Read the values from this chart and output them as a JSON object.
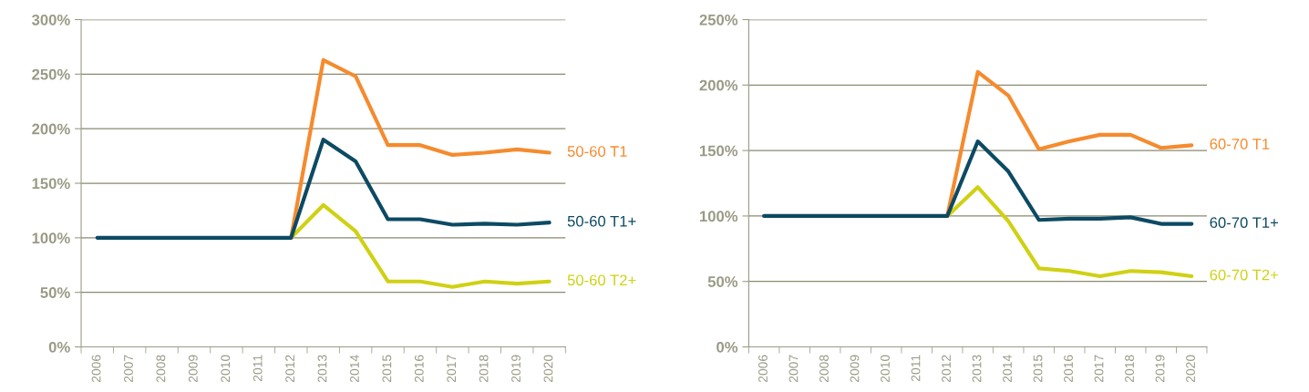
{
  "chart_data": [
    {
      "type": "line",
      "categories": [
        "2006",
        "2007",
        "2008",
        "2009",
        "2010",
        "2011",
        "2012",
        "2013",
        "2014",
        "2015",
        "2016",
        "2017",
        "2018",
        "2019",
        "2020"
      ],
      "ylim": [
        0,
        300
      ],
      "yticks": [
        {
          "value": 0,
          "label": "0%"
        },
        {
          "value": 50,
          "label": "50%"
        },
        {
          "value": 100,
          "label": "100%"
        },
        {
          "value": 150,
          "label": "150%"
        },
        {
          "value": 200,
          "label": "200%"
        },
        {
          "value": 250,
          "label": "250%"
        },
        {
          "value": 300,
          "label": "300%"
        }
      ],
      "grid": "y",
      "legend": false,
      "marker": "none",
      "line_style": "solid",
      "series": [
        {
          "name": "50-60 T2+",
          "color": "#cfd114",
          "values": [
            null,
            null,
            null,
            null,
            null,
            null,
            100,
            130,
            106,
            60,
            60,
            55,
            60,
            58,
            60
          ]
        },
        {
          "name": "50-60 T1",
          "color": "#f58b2e",
          "values": [
            null,
            null,
            null,
            null,
            null,
            null,
            100,
            263,
            248,
            185,
            185,
            176,
            178,
            181,
            178
          ]
        },
        {
          "name": "50-60 T1+",
          "color": "#0d4a63",
          "values": [
            100,
            100,
            100,
            100,
            100,
            100,
            100,
            190,
            170,
            117,
            117,
            112,
            113,
            112,
            114
          ]
        }
      ]
    },
    {
      "type": "line",
      "categories": [
        "2006",
        "2007",
        "2008",
        "2009",
        "2010",
        "2011",
        "2012",
        "2013",
        "2014",
        "2015",
        "2016",
        "2017",
        "2018",
        "2019",
        "2020"
      ],
      "ylim": [
        0,
        250
      ],
      "yticks": [
        {
          "value": 0,
          "label": "0%"
        },
        {
          "value": 50,
          "label": "50%"
        },
        {
          "value": 100,
          "label": "100%"
        },
        {
          "value": 150,
          "label": "150%"
        },
        {
          "value": 200,
          "label": "200%"
        },
        {
          "value": 250,
          "label": "250%"
        }
      ],
      "grid": "y",
      "legend": false,
      "marker": "none",
      "line_style": "solid",
      "series": [
        {
          "name": "60-70 T2+",
          "color": "#cfd114",
          "values": [
            null,
            null,
            null,
            null,
            null,
            null,
            100,
            122,
            96,
            60,
            58,
            54,
            58,
            57,
            54
          ]
        },
        {
          "name": "60-70 T1",
          "color": "#f58b2e",
          "values": [
            null,
            null,
            null,
            null,
            null,
            null,
            100,
            210,
            192,
            151,
            157,
            162,
            162,
            152,
            154
          ]
        },
        {
          "name": "60-70 T1+",
          "color": "#0d4a63",
          "values": [
            100,
            100,
            100,
            100,
            100,
            100,
            100,
            157,
            134,
            97,
            98,
            98,
            99,
            94,
            94
          ]
        }
      ]
    }
  ]
}
